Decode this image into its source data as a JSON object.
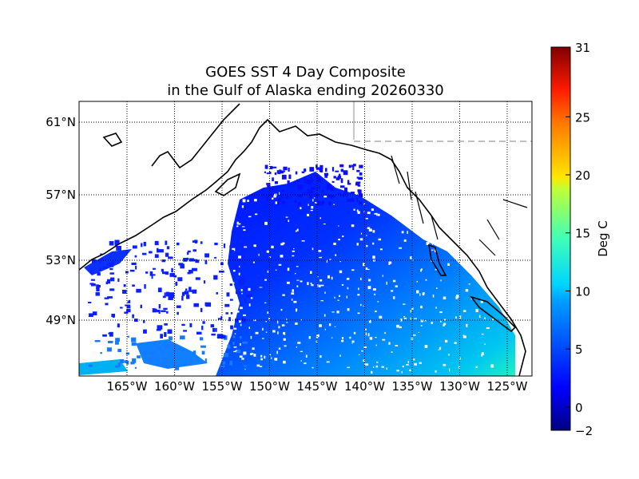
{
  "chart_data": {
    "type": "heatmap",
    "title_line1": "GOES SST 4 Day Composite",
    "title_line2": "in the Gulf of Alaska ending 20260330",
    "lon_ticks": [
      "165°W",
      "160°W",
      "155°W",
      "150°W",
      "145°W",
      "140°W",
      "135°W",
      "130°W",
      "125°W"
    ],
    "lon_values": [
      -165,
      -160,
      -155,
      -150,
      -145,
      -140,
      -135,
      -130,
      -125
    ],
    "lat_ticks": [
      "61°N",
      "57°N",
      "53°N",
      "49°N"
    ],
    "lat_values": [
      61,
      57,
      53,
      49
    ],
    "lon_range": [
      -170,
      -122
    ],
    "colorbar": {
      "label": "Deg C",
      "range": [
        -2,
        31
      ],
      "ticks": [
        "31",
        "25",
        "20",
        "15",
        "10",
        "5",
        "0",
        "−2"
      ],
      "tick_values": [
        31,
        25,
        20,
        15,
        10,
        5,
        0,
        -2
      ],
      "colormap": "jet"
    },
    "sst_range_observed": [
      1,
      11
    ]
  }
}
